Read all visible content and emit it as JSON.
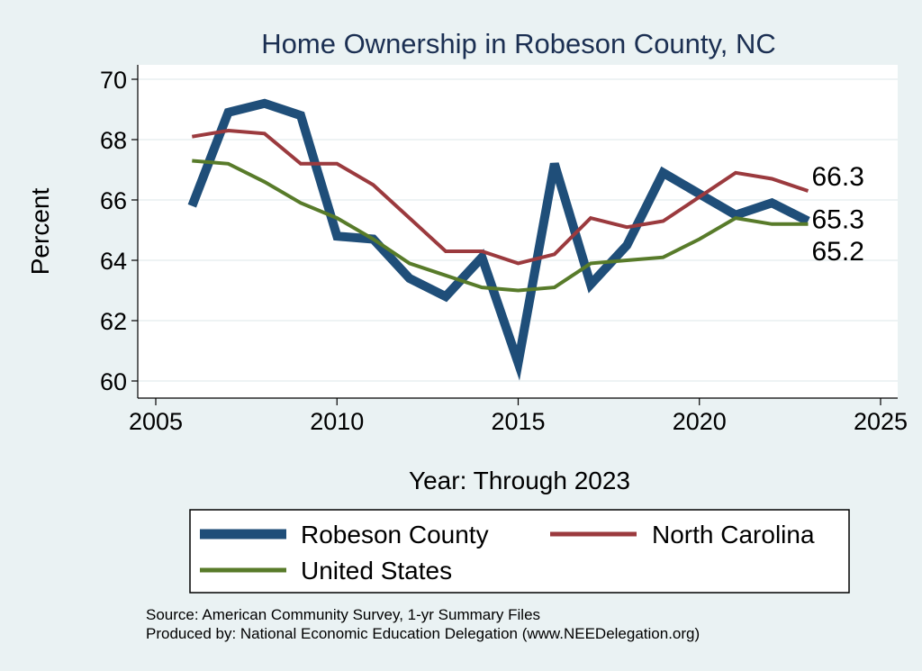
{
  "chart_data": {
    "type": "line",
    "title": "Home Ownership in Robeson County, NC",
    "xlabel": "Year: Through 2023",
    "ylabel": "Percent",
    "xlim": [
      2005,
      2025
    ],
    "ylim": [
      60,
      70
    ],
    "xticks": [
      2005,
      2010,
      2015,
      2020,
      2025
    ],
    "yticks": [
      60,
      62,
      64,
      66,
      68,
      70
    ],
    "grid": true,
    "legend_position": "bottom",
    "x": [
      2006,
      2007,
      2008,
      2009,
      2010,
      2011,
      2012,
      2013,
      2014,
      2015,
      2016,
      2017,
      2018,
      2019,
      2020,
      2021,
      2022,
      2023
    ],
    "series": [
      {
        "name": "Robeson County",
        "color": "#1f4e79",
        "width": 10,
        "end_label": "65.3",
        "values": [
          65.8,
          68.9,
          69.2,
          68.8,
          64.8,
          64.7,
          63.4,
          62.8,
          64.1,
          60.6,
          67.2,
          63.2,
          64.5,
          66.9,
          66.2,
          65.5,
          65.9,
          65.3
        ]
      },
      {
        "name": "North Carolina",
        "color": "#9b3a3e",
        "width": 4,
        "end_label": "66.3",
        "values": [
          68.1,
          68.3,
          68.2,
          67.2,
          67.2,
          66.5,
          65.4,
          64.3,
          64.3,
          63.9,
          64.2,
          65.4,
          65.1,
          65.3,
          66.1,
          66.9,
          66.7,
          66.3
        ]
      },
      {
        "name": "United States",
        "color": "#587b2a",
        "width": 4,
        "end_label": "65.2",
        "values": [
          67.3,
          67.2,
          66.6,
          65.9,
          65.4,
          64.7,
          63.9,
          63.5,
          63.1,
          63.0,
          63.1,
          63.9,
          64.0,
          64.1,
          64.7,
          65.4,
          65.2,
          65.2
        ]
      }
    ]
  },
  "footer": {
    "source": "Source: American Community Survey, 1-yr Summary Files",
    "produced_by": "Produced by: National Economic Education Delegation (www.NEEDelegation.org)"
  }
}
